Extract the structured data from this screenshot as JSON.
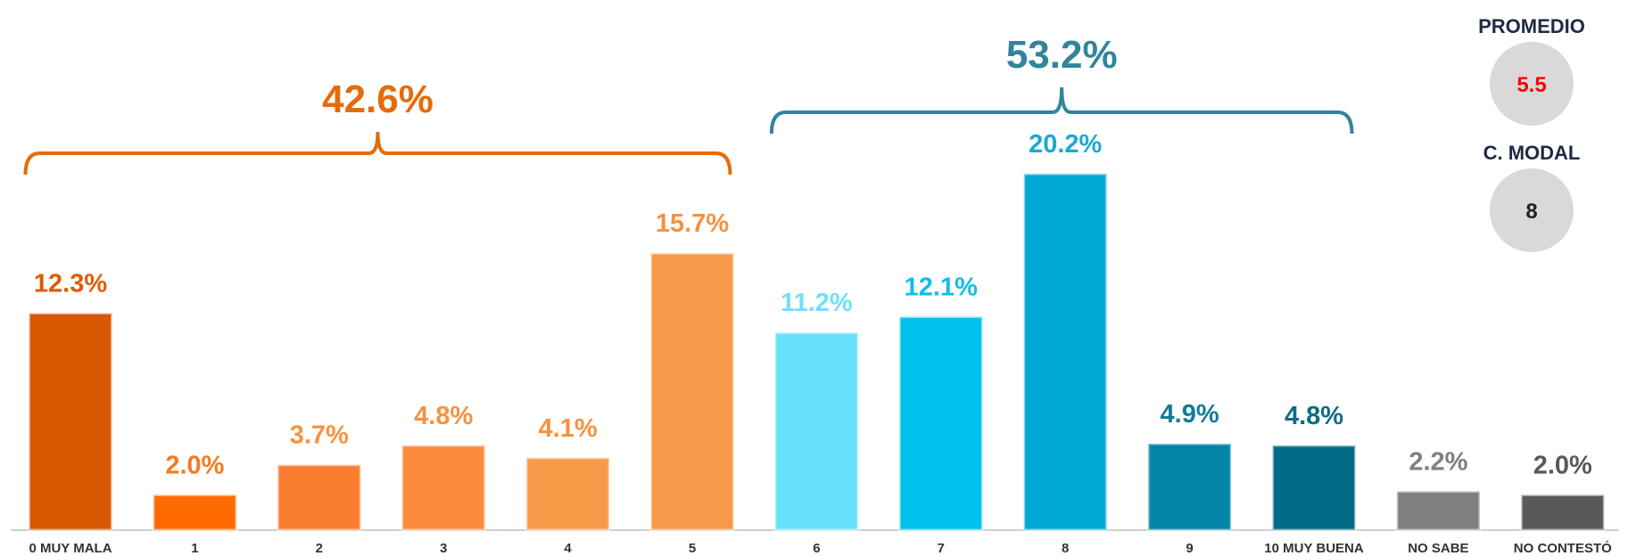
{
  "chart_data": {
    "type": "bar",
    "categories": [
      "0 MUY MALA",
      "1",
      "2",
      "3",
      "4",
      "5",
      "6",
      "7",
      "8",
      "9",
      "10 MUY BUENA",
      "NO SABE",
      "NO CONTESTÓ"
    ],
    "values": [
      12.3,
      2.0,
      3.7,
      4.8,
      4.1,
      15.7,
      11.2,
      12.1,
      20.2,
      4.9,
      4.8,
      2.2,
      2.0
    ],
    "value_labels": [
      "12.3%",
      "2.0%",
      "3.7%",
      "4.8%",
      "4.1%",
      "15.7%",
      "11.2%",
      "12.1%",
      "20.2%",
      "4.9%",
      "4.8%",
      "2.2%",
      "2.0%"
    ],
    "colors": [
      "#d95700",
      "#ff6a00",
      "#fb7d2f",
      "#fb8a3c",
      "#f79a48",
      "#f5994a",
      "#66e0fa",
      "#00c0ee",
      "#00a8d6",
      "#0085a6",
      "#006b84",
      "#7f7f7f",
      "#595959"
    ],
    "label_colors": [
      "#e05a00",
      "#f47a1e",
      "#f7913f",
      "#f7913f",
      "#f7913f",
      "#f7913f",
      "#6fe0fa",
      "#12bde8",
      "#1ba9d4",
      "#0e7d9a",
      "#0e6b84",
      "#7f7f7f",
      "#595959"
    ],
    "annotations": [
      {
        "label": "42.6%",
        "value": 42.6,
        "start": "0 MUY MALA",
        "end": "5",
        "color": "#e46c0a"
      },
      {
        "label": "53.2%",
        "value": 53.2,
        "start": "6",
        "end": "10 MUY BUENA",
        "color": "#31849b"
      }
    ],
    "stats": [
      {
        "label": "PROMEDIO",
        "value": 5.5,
        "color": "#ff0000"
      },
      {
        "label": "C. MODAL",
        "value": 8,
        "color": "#222222"
      }
    ]
  }
}
